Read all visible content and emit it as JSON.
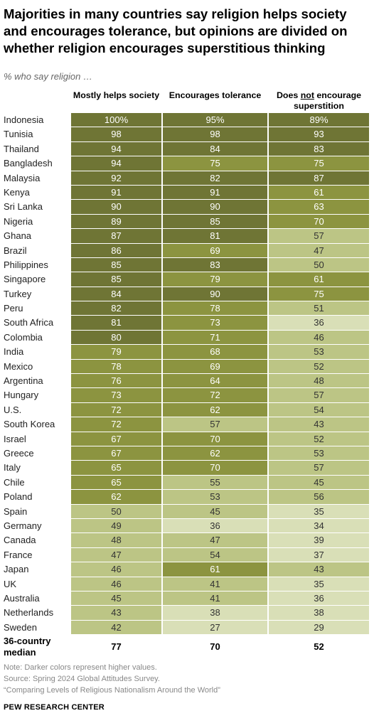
{
  "title": "Majorities in many countries say religion helps society and encourages tolerance, but opinions are divided on whether religion encourages superstitious thinking",
  "subtitle": "% who say religion …",
  "columns": [
    "Mostly helps society",
    "Encourages tolerance",
    "Does not encourage superstition"
  ],
  "column_emphasis": {
    "col": 2,
    "prefix": "Does ",
    "emph": "not",
    "suffix": " encourage superstition"
  },
  "colors": {
    "darkest": "#6f7535",
    "dark": "#8c9440",
    "mid": "#bcc585",
    "light": "#d9dfb7",
    "text_dark": "#ffffff",
    "text_light": "#333333"
  },
  "chart_data": {
    "type": "table",
    "rows": [
      {
        "country": "Indonesia",
        "values": [
          "100%",
          "95%",
          "89%"
        ]
      },
      {
        "country": "Tunisia",
        "values": [
          "98",
          "98",
          "93"
        ]
      },
      {
        "country": "Thailand",
        "values": [
          "94",
          "84",
          "83"
        ]
      },
      {
        "country": "Bangladesh",
        "values": [
          "94",
          "75",
          "75"
        ]
      },
      {
        "country": "Malaysia",
        "values": [
          "92",
          "82",
          "87"
        ]
      },
      {
        "country": "Kenya",
        "values": [
          "91",
          "91",
          "61"
        ]
      },
      {
        "country": "Sri Lanka",
        "values": [
          "90",
          "90",
          "63"
        ]
      },
      {
        "country": "Nigeria",
        "values": [
          "89",
          "85",
          "70"
        ]
      },
      {
        "country": "Ghana",
        "values": [
          "87",
          "81",
          "57"
        ]
      },
      {
        "country": "Brazil",
        "values": [
          "86",
          "69",
          "47"
        ]
      },
      {
        "country": "Philippines",
        "values": [
          "85",
          "83",
          "50"
        ]
      },
      {
        "country": "Singapore",
        "values": [
          "85",
          "79",
          "61"
        ]
      },
      {
        "country": "Turkey",
        "values": [
          "84",
          "90",
          "75"
        ]
      },
      {
        "country": "Peru",
        "values": [
          "82",
          "78",
          "51"
        ]
      },
      {
        "country": "South Africa",
        "values": [
          "81",
          "73",
          "36"
        ]
      },
      {
        "country": "Colombia",
        "values": [
          "80",
          "71",
          "46"
        ]
      },
      {
        "country": "India",
        "values": [
          "79",
          "68",
          "53"
        ]
      },
      {
        "country": "Mexico",
        "values": [
          "78",
          "69",
          "52"
        ]
      },
      {
        "country": "Argentina",
        "values": [
          "76",
          "64",
          "48"
        ]
      },
      {
        "country": "Hungary",
        "values": [
          "73",
          "72",
          "57"
        ]
      },
      {
        "country": "U.S.",
        "values": [
          "72",
          "62",
          "54"
        ]
      },
      {
        "country": "South Korea",
        "values": [
          "72",
          "57",
          "43"
        ]
      },
      {
        "country": "Israel",
        "values": [
          "67",
          "70",
          "52"
        ]
      },
      {
        "country": "Greece",
        "values": [
          "67",
          "62",
          "53"
        ]
      },
      {
        "country": "Italy",
        "values": [
          "65",
          "70",
          "57"
        ]
      },
      {
        "country": "Chile",
        "values": [
          "65",
          "55",
          "45"
        ]
      },
      {
        "country": "Poland",
        "values": [
          "62",
          "53",
          "56"
        ]
      },
      {
        "country": "Spain",
        "values": [
          "50",
          "45",
          "35"
        ]
      },
      {
        "country": "Germany",
        "values": [
          "49",
          "36",
          "34"
        ]
      },
      {
        "country": "Canada",
        "values": [
          "48",
          "47",
          "39"
        ]
      },
      {
        "country": "France",
        "values": [
          "47",
          "54",
          "37"
        ]
      },
      {
        "country": "Japan",
        "values": [
          "46",
          "61",
          "43"
        ]
      },
      {
        "country": "UK",
        "values": [
          "46",
          "41",
          "35"
        ]
      },
      {
        "country": "Australia",
        "values": [
          "45",
          "41",
          "36"
        ]
      },
      {
        "country": "Netherlands",
        "values": [
          "43",
          "38",
          "38"
        ]
      },
      {
        "country": "Sweden",
        "values": [
          "42",
          "27",
          "29"
        ]
      }
    ],
    "median": {
      "label_line1": "36-country",
      "label_line2": "median",
      "values": [
        "77",
        "70",
        "52"
      ]
    }
  },
  "notes": {
    "note": "Note: Darker colors represent higher values.",
    "source": "Source: Spring 2024 Global Attitudes Survey.",
    "report": "“Comparing Levels of Religious Nationalism Around the World”"
  },
  "footer": "PEW RESEARCH CENTER"
}
